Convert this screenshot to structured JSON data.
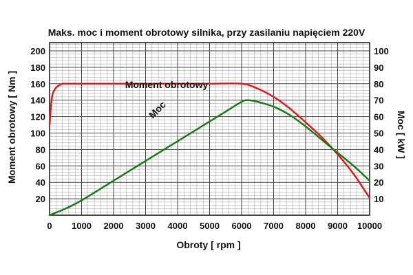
{
  "chart_data": {
    "type": "line",
    "title": "Maks. moc i moment obrotowy silnika, przy zasilaniu napięciem 220V",
    "xlabel": "Obroty [ rpm ]",
    "ylabel_left": "Moment obrotowy [ Nm ]",
    "ylabel_right": "Moc [ kW ]",
    "xlim": [
      0,
      10000
    ],
    "ylim_left": [
      0,
      210
    ],
    "ylim_right": [
      0,
      105
    ],
    "x_ticks": [
      "0",
      "1000",
      "2000",
      "3000",
      "4000",
      "5000",
      "6000",
      "7000",
      "8000",
      "9000",
      "10000"
    ],
    "y_left_ticks": [
      "20",
      "40",
      "60",
      "80",
      "100",
      "120",
      "140",
      "160",
      "180",
      "200"
    ],
    "y_right_ticks": [
      "10",
      "20",
      "30",
      "40",
      "50",
      "60",
      "70",
      "80",
      "90",
      "100"
    ],
    "grid": true,
    "series": [
      {
        "name": "Moment obrotowy",
        "axis": "left",
        "color": "#e0191b",
        "x": [
          0,
          50,
          100,
          200,
          300,
          400,
          500,
          1000,
          2000,
          3000,
          4000,
          5000,
          6000,
          6500,
          7000,
          7500,
          8000,
          8500,
          9000,
          9500,
          10000
        ],
        "y": [
          110,
          135,
          148,
          155,
          158,
          160,
          160,
          160,
          160,
          160,
          160,
          160,
          160,
          154,
          144,
          130,
          113,
          95,
          74,
          50,
          21
        ]
      },
      {
        "name": "Moc",
        "axis": "right",
        "color": "#1a7a1a",
        "x": [
          0,
          500,
          1000,
          2000,
          3000,
          4000,
          5000,
          5500,
          6000,
          6200,
          6500,
          7000,
          7500,
          8000,
          8500,
          9000,
          9500,
          10000
        ],
        "y": [
          0,
          4,
          9,
          21,
          33,
          45,
          57,
          63,
          69,
          70,
          69,
          66,
          61,
          54,
          46,
          38,
          30,
          21
        ]
      }
    ]
  }
}
